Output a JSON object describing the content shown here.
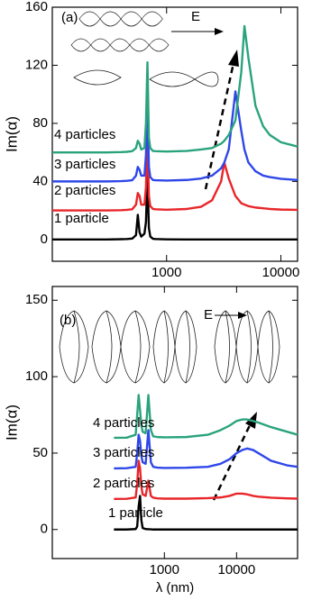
{
  "chart_data": [
    {
      "type": "line",
      "log_x": true,
      "ylabel": "Im(α)",
      "annotations": [
        "(a)",
        "E",
        "1 particle",
        "2 particles",
        "3 particles",
        "4 particles"
      ],
      "xlim": [
        100,
        14000
      ],
      "ylim": [
        -15,
        160
      ],
      "xticks": [
        1000,
        10000
      ],
      "yticks": [
        0,
        40,
        80,
        120,
        160
      ],
      "x": [
        100,
        200,
        300,
        400,
        450,
        500,
        540,
        560,
        580,
        600,
        640,
        660,
        680,
        700,
        720,
        760,
        800,
        1000,
        1500,
        2000,
        2500,
        3000,
        3200,
        3500,
        4000,
        4500,
        4800,
        5200,
        6000,
        7000,
        8000,
        10000,
        14000
      ],
      "series": [
        {
          "name": "1 particle",
          "color": "#000000",
          "values": [
            0,
            0,
            0,
            0.2,
            0.3,
            0.6,
            3,
            17,
            5,
            2,
            4,
            12,
            45,
            8,
            2,
            0.5,
            0.3,
            0.1,
            0,
            0,
            0,
            0,
            0,
            0,
            0,
            0,
            0,
            0,
            0,
            0,
            0,
            0,
            0
          ]
        },
        {
          "name": "2 particles",
          "color": "#e8262a",
          "values": [
            20,
            20,
            20,
            20.2,
            20.4,
            20.8,
            24,
            32,
            30,
            24,
            24,
            36,
            75,
            30,
            23,
            21,
            20.8,
            20.5,
            21,
            22.5,
            27,
            40,
            53,
            42,
            30,
            25,
            24,
            23,
            22,
            21.5,
            21,
            20.6,
            20.4
          ]
        },
        {
          "name": "3 particles",
          "color": "#2f47e8",
          "values": [
            40,
            40,
            40,
            40.2,
            40.4,
            40.8,
            44,
            50,
            48,
            44,
            44,
            58,
            100,
            50,
            43,
            41,
            40.8,
            40.6,
            41,
            42,
            44,
            49,
            53,
            62,
            102,
            75,
            62,
            53,
            47,
            44,
            43,
            41.8,
            41
          ]
        },
        {
          "name": "4 particles",
          "color": "#2aa37d",
          "values": [
            60,
            60,
            60,
            60.2,
            60.4,
            60.8,
            63,
            68,
            66,
            62,
            63,
            80,
            122,
            70,
            63,
            61,
            60.8,
            60.6,
            61,
            62,
            63,
            66,
            68,
            72,
            82,
            115,
            147,
            125,
            92,
            78,
            72,
            67,
            64
          ]
        }
      ]
    },
    {
      "type": "line",
      "log_x": true,
      "ylabel": "Im(α)",
      "xlabel": "λ (nm)",
      "annotations": [
        "(b)",
        "E",
        "1 particle",
        "2 particles",
        "3 particles",
        "4 particles"
      ],
      "xlim": [
        28,
        70000
      ],
      "ylim": [
        -19,
        159
      ],
      "xticks": [
        1000,
        10000
      ],
      "yticks": [
        0,
        50,
        100,
        150
      ],
      "x": [
        200,
        300,
        400,
        420,
        440,
        460,
        480,
        500,
        550,
        600,
        650,
        700,
        800,
        1000,
        2000,
        4000,
        6000,
        8000,
        10000,
        12000,
        14000,
        17000,
        20000,
        30000,
        50000,
        70000
      ],
      "series": [
        {
          "name": "1 particle",
          "color": "#000000",
          "values": [
            0,
            0,
            0.3,
            2,
            15,
            22,
            6,
            1,
            0.3,
            0.2,
            0.1,
            0,
            0,
            0,
            0,
            0,
            0,
            0,
            0,
            0,
            0,
            0,
            0,
            0,
            0,
            0
          ]
        },
        {
          "name": "2 particles",
          "color": "#e8262a",
          "values": [
            20,
            20.1,
            21,
            30,
            45,
            40,
            28,
            23,
            22,
            32,
            22,
            20.8,
            20.4,
            20.2,
            20.2,
            20.5,
            21,
            22,
            23.5,
            23.5,
            23,
            22,
            21.5,
            20.8,
            20.4,
            20.2
          ]
        },
        {
          "name": "3 particles",
          "color": "#2f47e8",
          "values": [
            40,
            40.1,
            41,
            50,
            62,
            58,
            48,
            44,
            43,
            65,
            44,
            41,
            40.5,
            40.3,
            40.4,
            41,
            43,
            46,
            50,
            52,
            53,
            52,
            50,
            45,
            42,
            41
          ]
        },
        {
          "name": "4 particles",
          "color": "#2aa37d",
          "values": [
            60,
            60.1,
            62,
            75,
            88,
            78,
            68,
            64,
            63,
            88,
            65,
            61,
            60.5,
            60.3,
            60.5,
            62,
            65,
            68,
            71,
            72,
            72,
            71,
            70,
            67,
            64,
            62
          ]
        }
      ]
    }
  ]
}
